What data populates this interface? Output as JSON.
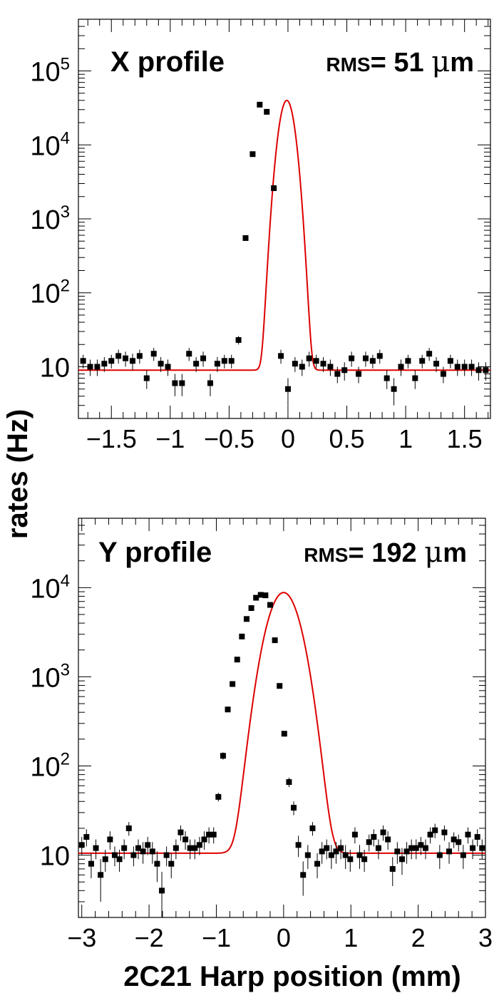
{
  "ylabel": "rates (Hz)",
  "xlabel": "2C21 Harp position (mm)",
  "chart_data": [
    {
      "type": "scatter",
      "title": "X profile",
      "annotation": {
        "prefix": "RMS",
        "text": "= 51 ",
        "mu": "μ",
        "unit": "m"
      },
      "xlabel": "2C21 Harp position (mm)",
      "ylabel": "rates (Hz)",
      "xlim": [
        -1.78,
        1.72
      ],
      "ylim": [
        2,
        500000
      ],
      "yscale": "log",
      "x_ticks": [
        -1.5,
        -1,
        -0.5,
        0,
        0.5,
        1,
        1.5
      ],
      "x_tick_labels": [
        "−1.5",
        "−1",
        "−0.5",
        "0",
        "0.5",
        "1",
        "1.5"
      ],
      "y_ticks": [
        10,
        100,
        1000,
        10000,
        100000
      ],
      "y_tick_labels": [
        {
          "base": "10",
          "exp": ""
        },
        {
          "base": "10",
          "exp": "2"
        },
        {
          "base": "10",
          "exp": "3"
        },
        {
          "base": "10",
          "exp": "4"
        },
        {
          "base": "10",
          "exp": "5"
        }
      ],
      "series": [
        {
          "name": "data",
          "color": "#000000",
          "x": [
            -1.74,
            -1.68,
            -1.62,
            -1.56,
            -1.5,
            -1.44,
            -1.38,
            -1.32,
            -1.26,
            -1.2,
            -1.14,
            -1.08,
            -1.02,
            -0.96,
            -0.9,
            -0.84,
            -0.78,
            -0.72,
            -0.66,
            -0.6,
            -0.54,
            -0.48,
            -0.42,
            -0.36,
            -0.3,
            -0.24,
            -0.18,
            -0.12,
            -0.06,
            0.0,
            0.06,
            0.12,
            0.18,
            0.24,
            0.3,
            0.36,
            0.42,
            0.48,
            0.54,
            0.6,
            0.66,
            0.72,
            0.78,
            0.84,
            0.9,
            0.96,
            1.02,
            1.08,
            1.14,
            1.2,
            1.26,
            1.32,
            1.38,
            1.44,
            1.5,
            1.56,
            1.62,
            1.68
          ],
          "y": [
            12,
            10,
            10,
            11,
            12,
            14,
            13,
            12,
            14,
            7,
            15,
            11,
            10,
            6,
            6,
            15,
            11,
            13,
            6,
            11,
            12,
            12,
            23,
            550,
            7500,
            35000,
            28000,
            2600,
            14,
            5,
            11,
            10,
            13,
            12,
            11,
            10,
            8,
            9,
            13,
            8,
            13,
            12,
            14,
            7,
            5,
            10,
            12,
            7,
            12,
            15,
            11,
            8,
            12,
            10,
            10,
            10,
            9,
            9
          ],
          "err": [
            2.5,
            2.5,
            2.5,
            2.5,
            2.5,
            3,
            3,
            3,
            3,
            2,
            3,
            2.5,
            2.5,
            2,
            2,
            3,
            2.5,
            3,
            2,
            2.5,
            2.5,
            2.5,
            3,
            20,
            80,
            150,
            140,
            45,
            3,
            2,
            2.5,
            2.5,
            3,
            2.5,
            2.5,
            2.5,
            2,
            2.5,
            3,
            2,
            3,
            2.5,
            3,
            2,
            2,
            2.5,
            2.5,
            2,
            2.5,
            3,
            2.5,
            2,
            2.5,
            2.5,
            2.5,
            2.5,
            2.5,
            2.5
          ]
        },
        {
          "name": "fit",
          "color": "#dd0000",
          "model": "gaussian_plus_constant",
          "amplitude": 40000,
          "mean": -0.01,
          "sigma": 0.051,
          "baseline": 9
        }
      ]
    },
    {
      "type": "scatter",
      "title": "Y profile",
      "annotation": {
        "prefix": "RMS",
        "text": "= 192 ",
        "mu": "μ",
        "unit": "m"
      },
      "xlabel": "2C21 Harp position (mm)",
      "ylabel": "rates (Hz)",
      "xlim": [
        -3.05,
        3.0
      ],
      "ylim": [
        2,
        60000
      ],
      "yscale": "log",
      "x_ticks": [
        -3,
        -2,
        -1,
        0,
        1,
        2,
        3
      ],
      "x_tick_labels": [
        "−3",
        "−2",
        "−1",
        "0",
        "1",
        "2",
        "3"
      ],
      "y_ticks": [
        10,
        100,
        1000,
        10000
      ],
      "y_tick_labels": [
        {
          "base": "10",
          "exp": ""
        },
        {
          "base": "10",
          "exp": "2"
        },
        {
          "base": "10",
          "exp": "3"
        },
        {
          "base": "10",
          "exp": "4"
        }
      ],
      "series": [
        {
          "name": "data",
          "color": "#000000",
          "x": [
            -3.0,
            -2.93,
            -2.86,
            -2.79,
            -2.72,
            -2.65,
            -2.58,
            -2.51,
            -2.44,
            -2.37,
            -2.3,
            -2.23,
            -2.16,
            -2.09,
            -2.02,
            -1.95,
            -1.88,
            -1.81,
            -1.74,
            -1.67,
            -1.6,
            -1.53,
            -1.46,
            -1.39,
            -1.32,
            -1.25,
            -1.18,
            -1.11,
            -1.04,
            -0.97,
            -0.9,
            -0.83,
            -0.76,
            -0.69,
            -0.62,
            -0.55,
            -0.48,
            -0.41,
            -0.34,
            -0.27,
            -0.2,
            -0.13,
            -0.06,
            0.01,
            0.08,
            0.15,
            0.22,
            0.29,
            0.36,
            0.43,
            0.5,
            0.57,
            0.64,
            0.71,
            0.78,
            0.85,
            0.92,
            0.99,
            1.06,
            1.13,
            1.2,
            1.27,
            1.34,
            1.41,
            1.48,
            1.55,
            1.62,
            1.69,
            1.76,
            1.83,
            1.9,
            1.97,
            2.04,
            2.11,
            2.18,
            2.25,
            2.32,
            2.39,
            2.46,
            2.53,
            2.6,
            2.67,
            2.74,
            2.81,
            2.88,
            2.95
          ],
          "y": [
            13,
            16,
            8,
            12,
            6,
            9,
            15,
            10,
            9,
            12,
            20,
            10,
            12,
            11,
            13,
            11,
            8,
            4,
            10,
            8,
            12,
            18,
            15,
            12,
            12,
            13,
            15,
            17,
            17,
            45,
            130,
            430,
            830,
            1560,
            2830,
            4450,
            5900,
            7700,
            8300,
            8200,
            6400,
            2570,
            790,
            230,
            66,
            34,
            13,
            6,
            10,
            20,
            8,
            11,
            12,
            10,
            11,
            12,
            10,
            9,
            17,
            10,
            9,
            14,
            16,
            12,
            18,
            15,
            7,
            11,
            9,
            11,
            12,
            12,
            13,
            12,
            17,
            19,
            10,
            18,
            11,
            15,
            14,
            10,
            17,
            12,
            16,
            12
          ],
          "err": [
            3,
            3.5,
            2.5,
            3,
            3,
            2.5,
            3.5,
            2.5,
            2.5,
            3,
            3.5,
            2.5,
            3,
            3,
            3,
            3,
            3,
            2.5,
            2.5,
            2.5,
            3,
            3.5,
            3.5,
            3,
            3,
            3,
            3.5,
            3.5,
            3.5,
            5,
            12,
            25,
            35,
            45,
            60,
            75,
            85,
            95,
            100,
            100,
            90,
            55,
            30,
            16,
            8,
            6,
            3.5,
            2.5,
            3,
            3.5,
            2.5,
            3,
            3,
            3,
            3,
            3,
            3,
            2.5,
            3.5,
            3,
            2.5,
            3,
            3.5,
            3,
            3.5,
            3.5,
            2.5,
            3,
            3,
            3,
            3,
            3,
            3,
            3,
            3.5,
            3.5,
            3,
            3.5,
            3,
            3,
            3,
            3,
            3.5,
            3,
            3.5,
            3
          ]
        },
        {
          "name": "fit",
          "color": "#dd0000",
          "model": "gaussian_plus_constant",
          "amplitude": 8800,
          "mean": 0.0,
          "sigma": 0.192,
          "baseline": 10.5
        }
      ]
    }
  ]
}
